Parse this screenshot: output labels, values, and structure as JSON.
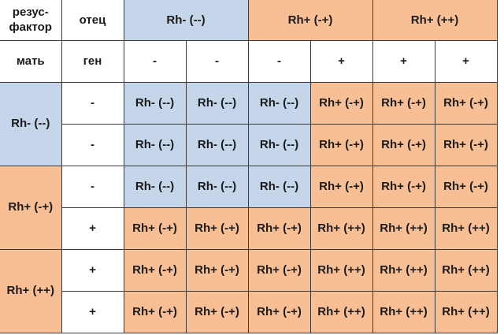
{
  "colors": {
    "rh_negative": "#c6d6ea",
    "rh_positive": "#f9bf94",
    "plain": "#ffffff"
  },
  "header": {
    "corner_label": "резус-\nфактор",
    "corner_line1": "резус-",
    "corner_line2": "фактор",
    "father_label": "отец",
    "father_groups": [
      {
        "label": "Rh- (--)",
        "type": "neg",
        "span": 2
      },
      {
        "label": "Rh+ (-+)",
        "type": "pos",
        "span": 2
      },
      {
        "label": "Rh+ (++)",
        "type": "pos",
        "span": 2
      }
    ],
    "mother_label": "мать",
    "gene_label": "ген",
    "father_genes": [
      "-",
      "-",
      "-",
      "+",
      "+",
      "+"
    ]
  },
  "mother_groups": [
    {
      "label": "Rh- (--)",
      "type": "neg"
    },
    {
      "label": "Rh+ (-+)",
      "type": "pos"
    },
    {
      "label": "Rh+ (++)",
      "type": "pos"
    }
  ],
  "rows": [
    {
      "gene": "-",
      "cells": [
        {
          "v": "Rh- (--)",
          "t": "neg"
        },
        {
          "v": "Rh- (--)",
          "t": "neg"
        },
        {
          "v": "Rh- (--)",
          "t": "neg"
        },
        {
          "v": "Rh+ (-+)",
          "t": "pos"
        },
        {
          "v": "Rh+ (-+)",
          "t": "pos"
        },
        {
          "v": "Rh+ (-+)",
          "t": "pos"
        }
      ]
    },
    {
      "gene": "-",
      "cells": [
        {
          "v": "Rh- (--)",
          "t": "neg"
        },
        {
          "v": "Rh- (--)",
          "t": "neg"
        },
        {
          "v": "Rh- (--)",
          "t": "neg"
        },
        {
          "v": "Rh+ (-+)",
          "t": "pos"
        },
        {
          "v": "Rh+ (-+)",
          "t": "pos"
        },
        {
          "v": "Rh+ (-+)",
          "t": "pos"
        }
      ]
    },
    {
      "gene": "-",
      "cells": [
        {
          "v": "Rh- (--)",
          "t": "neg"
        },
        {
          "v": "Rh- (--)",
          "t": "neg"
        },
        {
          "v": "Rh- (--)",
          "t": "neg"
        },
        {
          "v": "Rh+ (-+)",
          "t": "pos"
        },
        {
          "v": "Rh+ (-+)",
          "t": "pos"
        },
        {
          "v": "Rh+ (-+)",
          "t": "pos"
        }
      ]
    },
    {
      "gene": "+",
      "cells": [
        {
          "v": "Rh+ (-+)",
          "t": "pos"
        },
        {
          "v": "Rh+ (-+)",
          "t": "pos"
        },
        {
          "v": "Rh+ (-+)",
          "t": "pos"
        },
        {
          "v": "Rh+ (++)",
          "t": "pos"
        },
        {
          "v": "Rh+ (++)",
          "t": "pos"
        },
        {
          "v": "Rh+ (++)",
          "t": "pos"
        }
      ]
    },
    {
      "gene": "+",
      "cells": [
        {
          "v": "Rh+ (-+)",
          "t": "pos"
        },
        {
          "v": "Rh+ (-+)",
          "t": "pos"
        },
        {
          "v": "Rh+ (-+)",
          "t": "pos"
        },
        {
          "v": "Rh+ (++)",
          "t": "pos"
        },
        {
          "v": "Rh+ (++)",
          "t": "pos"
        },
        {
          "v": "Rh+ (++)",
          "t": "pos"
        }
      ]
    },
    {
      "gene": "+",
      "cells": [
        {
          "v": "Rh+ (-+)",
          "t": "pos"
        },
        {
          "v": "Rh+ (-+)",
          "t": "pos"
        },
        {
          "v": "Rh+ (-+)",
          "t": "pos"
        },
        {
          "v": "Rh+ (++)",
          "t": "pos"
        },
        {
          "v": "Rh+ (++)",
          "t": "pos"
        },
        {
          "v": "Rh+ (++)",
          "t": "pos"
        }
      ]
    }
  ]
}
